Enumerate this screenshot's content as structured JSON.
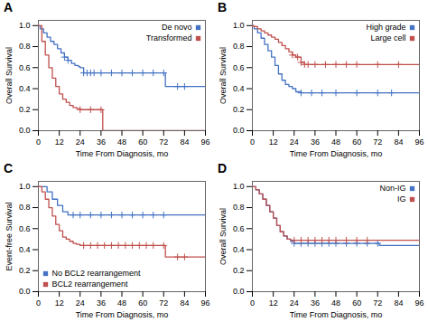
{
  "chart_data": [
    {
      "type": "line",
      "title": "A",
      "xlabel": "Time From Diagnosis, mo",
      "ylabel": "Overall Survival",
      "xlim": [
        0,
        96
      ],
      "ylim": [
        0.0,
        1.05
      ],
      "xticks": [
        0,
        12,
        24,
        36,
        48,
        60,
        72,
        84,
        96
      ],
      "yticks": [
        {
          "value": 0.0,
          "label": "0.0"
        },
        0.2,
        0.4,
        0.6,
        0.8,
        {
          "value": 1.0,
          "label": "1.0"
        }
      ],
      "grid": false,
      "legend": "upper right",
      "line_style": "step",
      "series": [
        {
          "name": "De novo",
          "color": "#4472c4",
          "x": [
            0,
            1,
            3,
            5,
            7,
            9,
            11,
            13,
            15,
            17,
            19,
            21,
            23,
            24,
            26,
            36,
            37,
            72,
            73,
            96
          ],
          "values": [
            1.0,
            0.97,
            0.93,
            0.89,
            0.85,
            0.82,
            0.78,
            0.74,
            0.7,
            0.67,
            0.64,
            0.62,
            0.61,
            0.6,
            0.55,
            0.55,
            0.55,
            0.55,
            0.42,
            0.42
          ],
          "censor_x": [
            15,
            17,
            26,
            28,
            30,
            32,
            36,
            42,
            48,
            54,
            60,
            66,
            72,
            80,
            84
          ],
          "censor_y": [
            0.7,
            0.67,
            0.55,
            0.55,
            0.55,
            0.55,
            0.55,
            0.55,
            0.55,
            0.55,
            0.55,
            0.55,
            0.55,
            0.42,
            0.42
          ]
        },
        {
          "name": "Transformed",
          "color": "#c0504d",
          "x": [
            0,
            2,
            4,
            6,
            8,
            10,
            12,
            14,
            16,
            18,
            20,
            22,
            24,
            36,
            37,
            96
          ],
          "values": [
            1.0,
            0.85,
            0.72,
            0.6,
            0.5,
            0.42,
            0.35,
            0.3,
            0.27,
            0.24,
            0.22,
            0.21,
            0.2,
            0.2,
            0.0,
            0.0
          ],
          "censor_x": [
            24,
            30,
            36
          ],
          "censor_y": [
            0.2,
            0.2,
            0.2
          ]
        }
      ]
    },
    {
      "type": "line",
      "title": "B",
      "xlabel": "Time From Diagnosis, mo",
      "ylabel": "Overall Survival",
      "xlim": [
        0,
        96
      ],
      "ylim": [
        0.0,
        1.05
      ],
      "xticks": [
        0,
        12,
        24,
        36,
        48,
        60,
        72,
        84,
        96
      ],
      "yticks": [
        {
          "value": 0.0,
          "label": "0.0"
        },
        0.2,
        0.4,
        0.6,
        0.8,
        {
          "value": 1.0,
          "label": "1.0"
        }
      ],
      "grid": false,
      "legend": "upper right",
      "line_style": "step",
      "series": [
        {
          "name": "High grade",
          "color": "#4472c4",
          "x": [
            0,
            1,
            3,
            5,
            7,
            9,
            11,
            13,
            15,
            17,
            19,
            21,
            23,
            25,
            28,
            32,
            36,
            96
          ],
          "values": [
            1.0,
            0.97,
            0.93,
            0.88,
            0.82,
            0.76,
            0.7,
            0.62,
            0.54,
            0.48,
            0.44,
            0.42,
            0.4,
            0.37,
            0.36,
            0.36,
            0.36,
            0.36
          ],
          "censor_x": [
            28,
            34,
            40,
            48,
            60,
            72,
            80
          ],
          "censor_y": [
            0.36,
            0.36,
            0.36,
            0.36,
            0.36,
            0.36,
            0.36
          ]
        },
        {
          "name": "Large cell",
          "color": "#c0504d",
          "x": [
            0,
            1,
            3,
            5,
            7,
            9,
            11,
            13,
            15,
            17,
            19,
            21,
            23,
            25,
            28,
            30,
            36,
            96
          ],
          "values": [
            1.0,
            0.99,
            0.97,
            0.95,
            0.93,
            0.91,
            0.89,
            0.87,
            0.84,
            0.81,
            0.78,
            0.75,
            0.72,
            0.7,
            0.65,
            0.63,
            0.63,
            0.63
          ],
          "censor_x": [
            23,
            26,
            28,
            30,
            32,
            36,
            42,
            48,
            54,
            60,
            72,
            84
          ],
          "censor_y": [
            0.72,
            0.7,
            0.65,
            0.63,
            0.63,
            0.63,
            0.63,
            0.63,
            0.63,
            0.63,
            0.63,
            0.63
          ]
        }
      ]
    },
    {
      "type": "line",
      "title": "C",
      "xlabel": "Time From Diagnosis, mo",
      "ylabel": "Event-free Survival",
      "xlim": [
        0,
        96
      ],
      "ylim": [
        0.0,
        1.05
      ],
      "xticks": [
        0,
        12,
        24,
        36,
        48,
        60,
        72,
        84,
        96
      ],
      "yticks": [
        {
          "value": 0.0,
          "label": "0.0"
        },
        0.2,
        0.4,
        0.6,
        0.8,
        {
          "value": 1.0,
          "label": "1.0"
        }
      ],
      "grid": false,
      "legend": "lower left",
      "line_style": "step",
      "series": [
        {
          "name": "No BCL2 rearrangement",
          "color": "#4472c4",
          "x": [
            0,
            2,
            5,
            8,
            11,
            14,
            17,
            20,
            96
          ],
          "values": [
            1.0,
            1.0,
            0.95,
            0.88,
            0.82,
            0.76,
            0.73,
            0.73,
            0.73
          ],
          "censor_x": [
            20,
            24,
            30,
            36,
            42,
            48,
            54,
            60,
            66,
            72
          ],
          "censor_y": [
            0.73,
            0.73,
            0.73,
            0.73,
            0.73,
            0.73,
            0.73,
            0.73,
            0.73,
            0.73
          ]
        },
        {
          "name": "BCL2 rearrangement",
          "color": "#c0504d",
          "x": [
            0,
            2,
            4,
            6,
            8,
            10,
            12,
            14,
            16,
            18,
            20,
            22,
            24,
            72,
            73,
            96
          ],
          "values": [
            1.0,
            0.95,
            0.88,
            0.8,
            0.72,
            0.64,
            0.58,
            0.52,
            0.5,
            0.48,
            0.46,
            0.45,
            0.44,
            0.44,
            0.33,
            0.33
          ],
          "censor_x": [
            26,
            30,
            34,
            38,
            42,
            46,
            50,
            54,
            58,
            62,
            66,
            72,
            80,
            84
          ],
          "censor_y": [
            0.44,
            0.44,
            0.44,
            0.44,
            0.44,
            0.44,
            0.44,
            0.44,
            0.44,
            0.44,
            0.44,
            0.44,
            0.33,
            0.33
          ]
        }
      ]
    },
    {
      "type": "line",
      "title": "D",
      "xlabel": "Time From Diagnosis, mo",
      "ylabel": "Overall Survival",
      "xlim": [
        0,
        96
      ],
      "ylim": [
        0.0,
        1.05
      ],
      "xticks": [
        0,
        12,
        24,
        36,
        48,
        60,
        72,
        84,
        96
      ],
      "yticks": [
        {
          "value": 0.0,
          "label": "0.0"
        },
        0.2,
        0.4,
        0.6,
        0.8,
        {
          "value": 1.0,
          "label": "1.0"
        }
      ],
      "grid": false,
      "legend": "upper right",
      "line_style": "step",
      "series": [
        {
          "name": "Non-IG",
          "color": "#4472c4",
          "x": [
            0,
            2,
            4,
            6,
            8,
            10,
            12,
            14,
            16,
            18,
            20,
            22,
            24,
            72,
            73,
            96
          ],
          "values": [
            1.0,
            0.97,
            0.93,
            0.88,
            0.82,
            0.76,
            0.7,
            0.63,
            0.57,
            0.53,
            0.5,
            0.48,
            0.46,
            0.46,
            0.44,
            0.44
          ],
          "censor_x": [
            24,
            28,
            32,
            36,
            40,
            44,
            48,
            54,
            60,
            66,
            72
          ],
          "censor_y": [
            0.46,
            0.46,
            0.46,
            0.46,
            0.46,
            0.46,
            0.46,
            0.46,
            0.46,
            0.46,
            0.46
          ]
        },
        {
          "name": "IG",
          "color": "#c0504d",
          "x": [
            0,
            2,
            4,
            6,
            8,
            10,
            12,
            14,
            16,
            18,
            20,
            22,
            24,
            96
          ],
          "values": [
            1.0,
            0.97,
            0.93,
            0.88,
            0.82,
            0.76,
            0.7,
            0.63,
            0.57,
            0.53,
            0.5,
            0.49,
            0.49,
            0.49
          ],
          "censor_x": [
            24,
            28,
            32,
            36,
            40,
            44,
            48,
            54,
            60,
            66
          ],
          "censor_y": [
            0.49,
            0.49,
            0.49,
            0.49,
            0.49,
            0.49,
            0.49,
            0.49,
            0.49,
            0.49
          ]
        }
      ]
    }
  ]
}
